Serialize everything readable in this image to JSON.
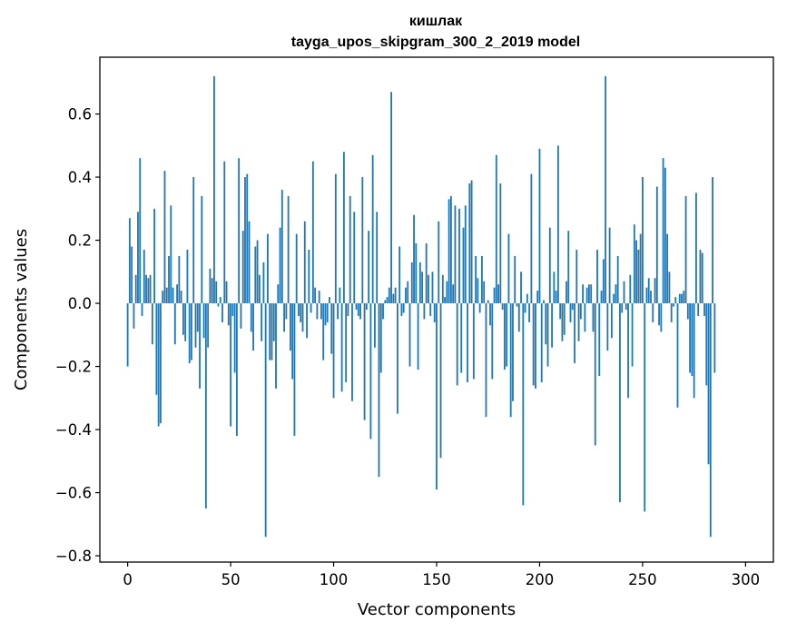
{
  "chart_data": {
    "type": "bar",
    "title": "кишлак",
    "subtitle": "tayga_upos_skipgram_300_2_2019 model",
    "xlabel": "Vector components",
    "ylabel": "Components values",
    "xlim": [
      -13.5,
      313.5
    ],
    "ylim": [
      -0.82,
      0.78
    ],
    "xticks": [
      0,
      50,
      100,
      150,
      200,
      250,
      300
    ],
    "xtick_labels": [
      "0",
      "50",
      "100",
      "150",
      "200",
      "250",
      "300"
    ],
    "yticks": [
      -0.8,
      -0.6,
      -0.4,
      -0.2,
      0.0,
      0.2,
      0.4,
      0.6
    ],
    "ytick_labels": [
      "−0.8",
      "−0.6",
      "−0.4",
      "−0.2",
      "0.0",
      "0.2",
      "0.4",
      "0.6"
    ],
    "bar_color": "#1f77b4",
    "values": [
      -0.2,
      0.27,
      0.18,
      -0.08,
      0.09,
      0.29,
      0.46,
      -0.04,
      0.17,
      0.09,
      0.08,
      0.09,
      -0.13,
      0.3,
      -0.29,
      -0.39,
      -0.38,
      0.04,
      0.42,
      0.05,
      0.15,
      0.31,
      0.05,
      -0.13,
      0.06,
      0.15,
      0.04,
      -0.1,
      -0.12,
      0.17,
      -0.19,
      -0.18,
      0.4,
      -0.14,
      -0.09,
      -0.27,
      0.34,
      -0.11,
      -0.65,
      -0.14,
      0.11,
      0.08,
      0.72,
      0.07,
      -0.01,
      0.02,
      -0.06,
      0.45,
      0.07,
      -0.07,
      -0.39,
      -0.04,
      -0.22,
      -0.42,
      0.46,
      -0.08,
      0.23,
      0.4,
      0.41,
      0.26,
      -0.09,
      -0.15,
      0.18,
      0.2,
      0.09,
      -0.12,
      0.13,
      -0.74,
      0.22,
      -0.18,
      -0.18,
      -0.12,
      -0.27,
      0.06,
      0.24,
      0.36,
      -0.09,
      -0.05,
      0.34,
      -0.15,
      -0.24,
      -0.42,
      0.22,
      -0.04,
      -0.06,
      -0.09,
      0.26,
      -0.11,
      0.17,
      -0.03,
      0.45,
      0.05,
      -0.05,
      0.04,
      -0.05,
      -0.18,
      -0.07,
      -0.06,
      0.02,
      -0.16,
      -0.3,
      0.41,
      -0.05,
      0.05,
      -0.28,
      0.48,
      -0.25,
      -0.04,
      0.34,
      -0.31,
      0.29,
      -0.02,
      -0.04,
      -0.05,
      0.4,
      -0.37,
      -0.02,
      0.23,
      -0.43,
      0.47,
      -0.14,
      0.29,
      -0.55,
      -0.22,
      -0.05,
      0.01,
      0.02,
      0.05,
      0.67,
      0.03,
      0.05,
      -0.35,
      0.18,
      -0.04,
      -0.03,
      0.05,
      0.07,
      -0.2,
      0.13,
      0.28,
      0.19,
      -0.21,
      0.13,
      0.1,
      -0.05,
      0.19,
      0.09,
      -0.04,
      0.1,
      -0.06,
      -0.59,
      0.26,
      -0.49,
      0.09,
      0.02,
      0.07,
      0.33,
      0.34,
      0.06,
      0.31,
      -0.26,
      0.3,
      -0.22,
      0.24,
      0.31,
      -0.25,
      0.38,
      0.39,
      -0.24,
      0.15,
      0.08,
      -0.03,
      0.15,
      0.07,
      -0.36,
      0.01,
      -0.07,
      -0.24,
      0.05,
      0.47,
      0.06,
      0.38,
      -0.02,
      -0.21,
      -0.2,
      0.22,
      -0.36,
      -0.31,
      0.15,
      -0.01,
      -0.09,
      0.1,
      -0.64,
      -0.03,
      0.03,
      -0.06,
      0.41,
      -0.26,
      -0.27,
      0.04,
      0.49,
      -0.25,
      0.01,
      -0.13,
      -0.2,
      0.24,
      -0.14,
      0.1,
      0.04,
      0.5,
      -0.05,
      -0.12,
      -0.1,
      0.07,
      0.23,
      -0.06,
      -0.02,
      -0.19,
      0.17,
      -0.12,
      -0.05,
      0.06,
      -0.09,
      0.05,
      0.06,
      0.06,
      -0.09,
      -0.45,
      0.17,
      -0.23,
      0.04,
      0.14,
      0.72,
      -0.15,
      0.24,
      -0.11,
      0.03,
      0.06,
      0.15,
      -0.63,
      -0.03,
      0.07,
      -0.02,
      -0.3,
      0.09,
      -0.2,
      0.25,
      0.2,
      0.17,
      0.22,
      0.4,
      -0.66,
      0.05,
      0.08,
      0.04,
      -0.06,
      0.08,
      0.37,
      -0.07,
      -0.09,
      0.46,
      0.43,
      0.22,
      0.1,
      -0.06,
      -0.01,
      0.02,
      -0.33,
      0.03,
      0.03,
      0.04,
      0.34,
      -0.05,
      -0.22,
      -0.23,
      -0.3,
      0.35,
      -0.04,
      0.17,
      0.16,
      -0.04,
      -0.26,
      -0.51,
      -0.74,
      0.4,
      -0.22
    ]
  }
}
